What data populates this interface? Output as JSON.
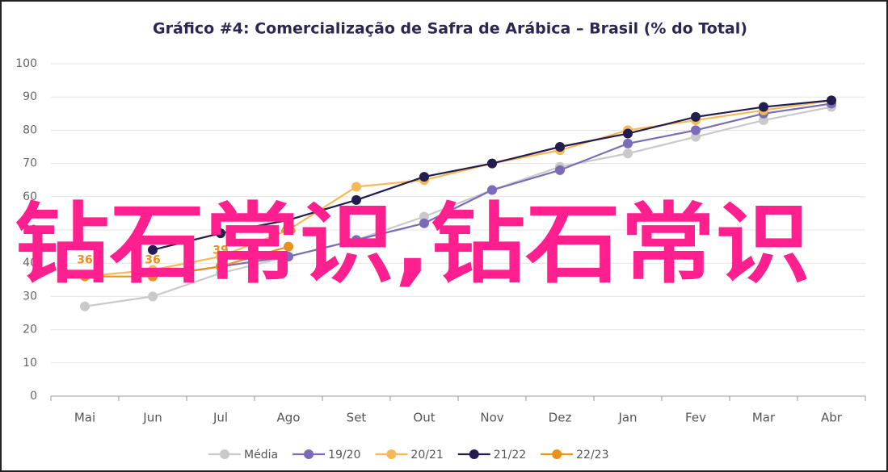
{
  "chart_data": {
    "type": "line",
    "title": "Gráfico #4: Comercialização de Safra de Arábica – Brasil (% do Total)",
    "watermark": "钻石常识,钻石常识",
    "categories": [
      "Mai",
      "Jun",
      "Jul",
      "Ago",
      "Set",
      "Out",
      "Nov",
      "Dez",
      "Jan",
      "Fev",
      "Mar",
      "Abr"
    ],
    "series": [
      {
        "name": "Média",
        "color": "#c9c9c9",
        "values": [
          27,
          30,
          37,
          42,
          47,
          54,
          62,
          69,
          73,
          78,
          83,
          87
        ]
      },
      {
        "name": "19/20",
        "color": "#7b6bb8",
        "values": [
          null,
          36,
          39,
          42,
          47,
          52,
          62,
          68,
          76,
          80,
          85,
          88
        ]
      },
      {
        "name": "20/21",
        "color": "#f6b955",
        "values": [
          36,
          38,
          42,
          50,
          63,
          65,
          70,
          74,
          80,
          83,
          86,
          89
        ]
      },
      {
        "name": "21/22",
        "color": "#231c4e",
        "values": [
          null,
          44,
          49,
          53,
          59,
          66,
          70,
          75,
          79,
          84,
          87,
          89
        ]
      },
      {
        "name": "22/23",
        "color": "#e8911c",
        "values": [
          36,
          36,
          39,
          45,
          null,
          null,
          null,
          null,
          null,
          null,
          null,
          null
        ],
        "labels": true
      }
    ],
    "ylim": [
      0,
      100
    ],
    "yticks": [
      0,
      10,
      20,
      30,
      40,
      50,
      60,
      70,
      80,
      90,
      100
    ],
    "grid": true
  }
}
